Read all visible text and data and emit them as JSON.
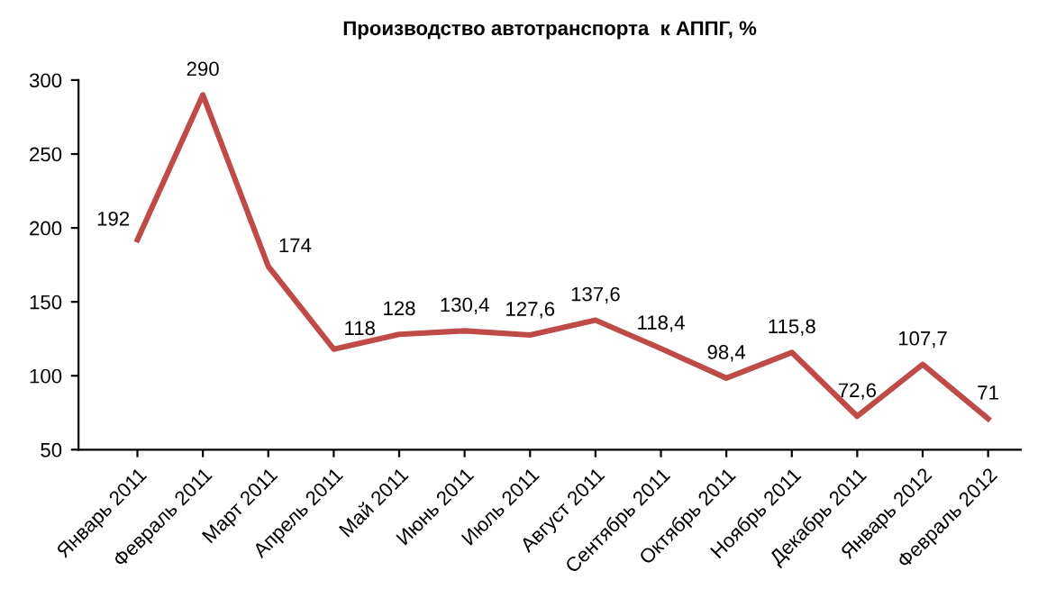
{
  "chart_data": {
    "type": "line",
    "title": "Производство автотранспорта  к АППГ, %",
    "categories": [
      "Январь 2011",
      "Февраль 2011",
      "Март 2011",
      "Апрель 2011",
      "Май 2011",
      "Июнь 2011",
      "Июль 2011",
      "Август 2011",
      "Сентябрь 2011",
      "Октябрь 2011",
      "Ноябрь 2011",
      "Декабрь 2011",
      "Январь 2012",
      "Февраль 2012"
    ],
    "series": [
      {
        "color": "#be4b48",
        "values": [
          192,
          290,
          174,
          118,
          128,
          130.4,
          127.6,
          137.6,
          118.4,
          98.4,
          115.8,
          72.6,
          107.7,
          71
        ],
        "value_labels": [
          "192",
          "290",
          "174",
          "118",
          "128",
          "130,4",
          "127,6",
          "137,6",
          "118,4",
          "98,4",
          "115,8",
          "72,6",
          "107,7",
          "71"
        ]
      }
    ],
    "ylim": [
      50,
      300
    ],
    "yticks": [
      50,
      100,
      150,
      200,
      250,
      300
    ],
    "grid": false,
    "legend": false,
    "marker": "none",
    "line_style": "solid"
  }
}
